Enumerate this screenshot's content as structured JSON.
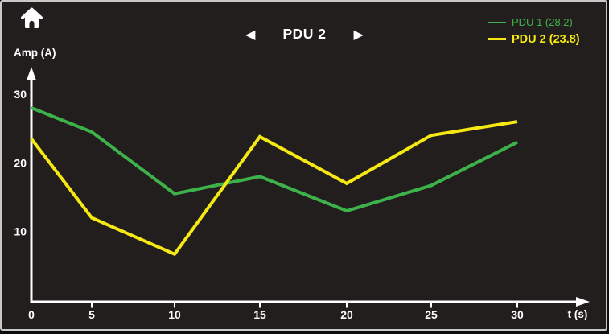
{
  "header": {
    "title": "PDU 2",
    "prev_arrow": "◀",
    "next_arrow": "▶"
  },
  "legend": {
    "items": [
      {
        "label": "PDU 1 (28.2)",
        "color": "#3eb24a",
        "active": false
      },
      {
        "label": "PDU 2 (23.8)",
        "color": "#f6e813",
        "active": true
      }
    ]
  },
  "chart_data": {
    "type": "line",
    "x": [
      0,
      5,
      10,
      15,
      20,
      25,
      30
    ],
    "series": [
      {
        "name": "PDU 1",
        "color": "#3eb24a",
        "values": [
          28,
          24.5,
          15.5,
          18,
          13,
          16.7,
          23
        ]
      },
      {
        "name": "PDU 2",
        "color": "#f6e813",
        "values": [
          23.5,
          12,
          6.7,
          23.8,
          17,
          24,
          26
        ]
      }
    ],
    "xlabel": "t (s)",
    "ylabel": "Amp (A)",
    "xticks": [
      0,
      5,
      10,
      15,
      20,
      25,
      30
    ],
    "yticks": [
      10,
      20,
      30
    ],
    "ylim": [
      0,
      33
    ],
    "grid": false,
    "legend_position": "top-right"
  },
  "colors": {
    "background": "#221e1d",
    "axis": "#ffffff",
    "text": "#ffffff",
    "border": "#c9c9c9"
  }
}
